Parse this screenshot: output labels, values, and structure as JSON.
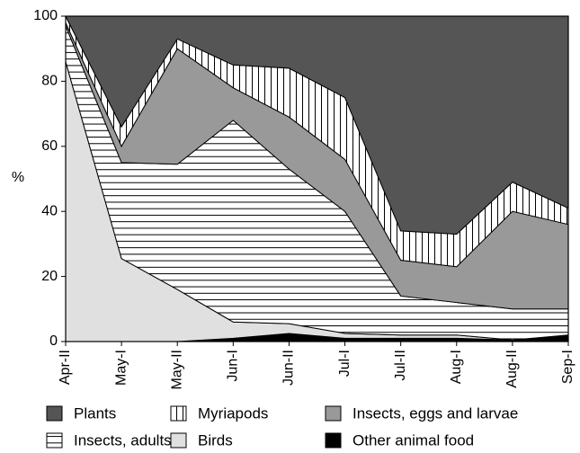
{
  "chart_data": {
    "type": "stacked-area",
    "y_label": "%",
    "categories": [
      "Apr-II",
      "May-I",
      "May-II",
      "Jun-I",
      "Jun-II",
      "Jul-I",
      "Jul-II",
      "Aug-I",
      "Aug-II",
      "Sep-I"
    ],
    "series": [
      {
        "name": "Plants",
        "color": "#555555",
        "values": [
          0,
          34,
          7,
          15,
          16,
          25,
          66,
          67,
          51,
          59
        ]
      },
      {
        "name": "Myriapods",
        "color": "#ffffff",
        "pattern": "vertical",
        "values": [
          2,
          6,
          3,
          7,
          15,
          19,
          9,
          10,
          9,
          5
        ]
      },
      {
        "name": "Insects, eggs and larvae",
        "color": "#999999",
        "values": [
          1,
          5,
          35.5,
          10,
          16,
          16,
          11,
          11,
          30,
          26
        ]
      },
      {
        "name": "Insects, adults",
        "color": "#ffffff",
        "pattern": "horizontal",
        "values": [
          11,
          29.5,
          38.5,
          62,
          47.5,
          37.5,
          12,
          10,
          9.5,
          8
        ]
      },
      {
        "name": "Birds",
        "color": "#e0e0e0",
        "values": [
          86,
          25.5,
          16,
          5,
          3,
          1.5,
          1,
          1,
          0,
          0
        ]
      },
      {
        "name": "Other animal food",
        "color": "#000000",
        "values": [
          0,
          0,
          0,
          1,
          2.5,
          1,
          1,
          1,
          0.5,
          2
        ]
      }
    ],
    "ylim": [
      0,
      100
    ],
    "yticks": [
      0,
      20,
      40,
      60,
      80,
      100
    ],
    "grid": false
  }
}
